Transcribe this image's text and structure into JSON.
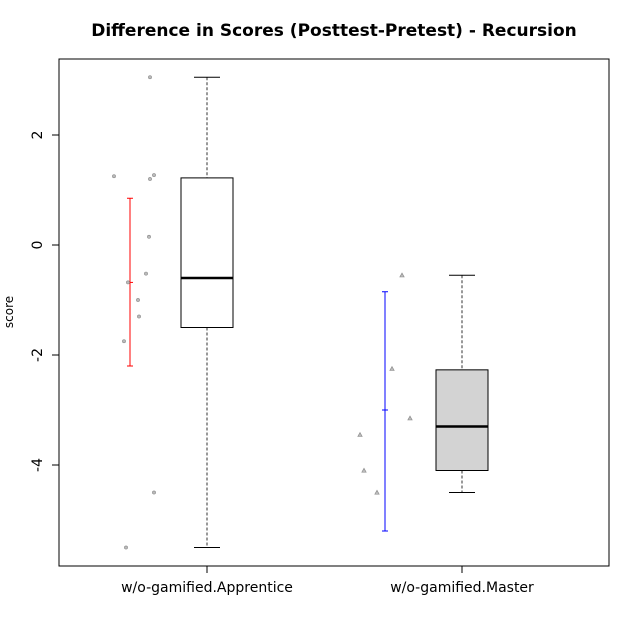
{
  "chart_data": {
    "type": "boxplot",
    "title": "Difference in Scores (Posttest-Pretest) - Recursion",
    "xlabel": "",
    "ylabel": "score",
    "ylim": [
      -5.8,
      3.3
    ],
    "yticks": [
      -4,
      -2,
      0,
      2
    ],
    "ytick_labels": [
      "-4",
      "-2",
      "0",
      "2"
    ],
    "grid": false,
    "categories": [
      "w/o-gamified.Apprentice",
      "w/o-gamified.Master"
    ],
    "series": [
      {
        "category": "w/o-gamified.Apprentice",
        "box": {
          "min": -5.5,
          "q1": -1.5,
          "median": -0.6,
          "q3": 1.22,
          "max": 3.05
        },
        "box_fill": "#ffffff",
        "error_bar": {
          "mean": -0.68,
          "low": -2.2,
          "high": 0.85,
          "color": "#ff0000"
        },
        "points": [
          3.05,
          1.25,
          1.2,
          1.27,
          0.15,
          -0.52,
          -0.68,
          -1.0,
          -1.3,
          -1.75,
          -4.5,
          -5.5
        ],
        "point_marker": "circle"
      },
      {
        "category": "w/o-gamified.Master",
        "box": {
          "min": -4.5,
          "q1": -4.1,
          "median": -3.3,
          "q3": -2.27,
          "max": -0.55
        },
        "box_fill": "#d3d3d3",
        "error_bar": {
          "mean": -3.0,
          "low": -5.2,
          "high": -0.85,
          "color": "#0000ff"
        },
        "points": [
          -0.55,
          -2.25,
          -3.15,
          -3.45,
          -4.1,
          -4.5
        ],
        "point_marker": "triangle"
      }
    ]
  }
}
